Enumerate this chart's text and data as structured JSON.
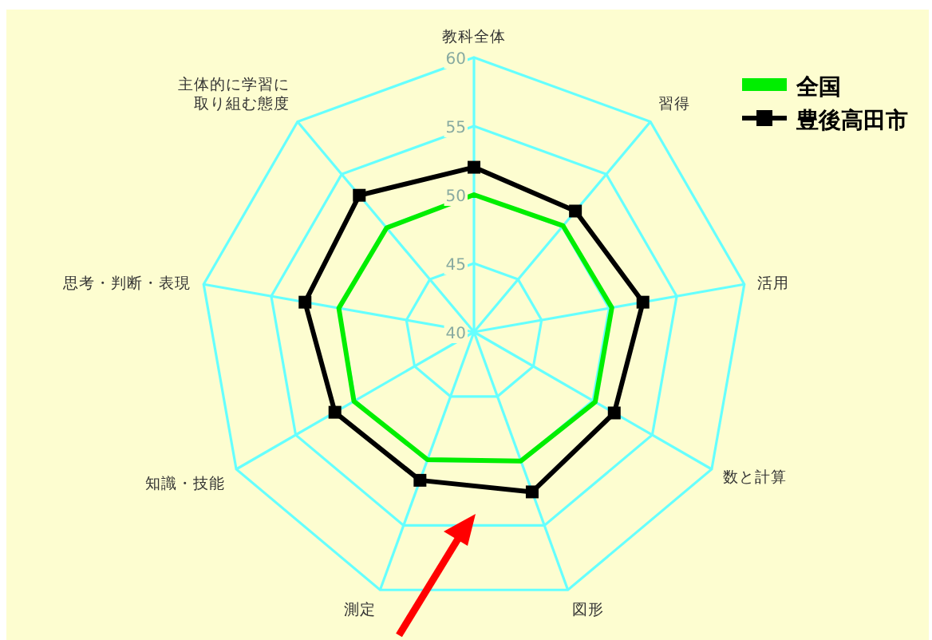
{
  "chart_data": {
    "type": "radar",
    "categories": [
      "教科全体",
      "習得",
      "活用",
      "数と計算",
      "図形",
      "測定",
      "知識・技能",
      "思考・判断・表現",
      "主体的に学習に取り組む態度"
    ],
    "series": [
      {
        "name": "全国",
        "color": "#00ee00",
        "marker": "none",
        "values": [
          50.0,
          50.1,
          50.2,
          50.2,
          50.0,
          49.9,
          50.1,
          50.0,
          49.9
        ]
      },
      {
        "name": "豊後高田市",
        "color": "#000000",
        "marker": "square",
        "values": [
          52.0,
          51.5,
          52.5,
          51.8,
          52.4,
          51.5,
          51.7,
          52.5,
          53.0
        ]
      }
    ],
    "ylim": [
      40,
      60
    ],
    "yticks": [
      40,
      45,
      50,
      55,
      60
    ],
    "grid": true,
    "legend": "top right"
  }
}
